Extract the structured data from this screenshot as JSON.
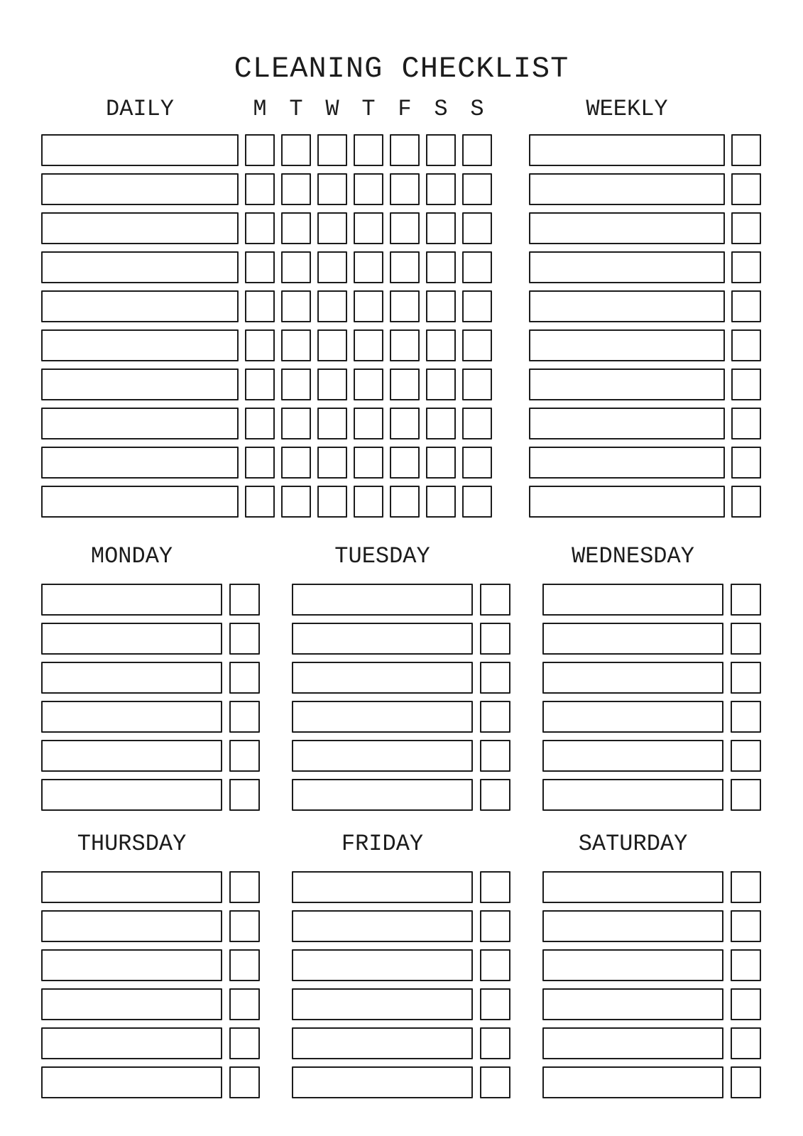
{
  "title": "CLEANING CHECKLIST",
  "colors": {
    "ink": "#1c1c1c",
    "paper": "#ffffff"
  },
  "daily": {
    "label": "DAILY",
    "day_letters": [
      "M",
      "T",
      "W",
      "T",
      "F",
      "S",
      "S"
    ],
    "row_count": 10,
    "checkboxes_per_row": 7
  },
  "weekly": {
    "label": "WEEKLY",
    "row_count": 10,
    "checkboxes_per_row": 1
  },
  "day_sections": [
    {
      "label": "MONDAY"
    },
    {
      "label": "TUESDAY"
    },
    {
      "label": "WEDNESDAY"
    },
    {
      "label": "THURSDAY"
    },
    {
      "label": "FRIDAY"
    },
    {
      "label": "SATURDAY"
    }
  ],
  "day_section_row_count": 6,
  "day_section_checkboxes_per_row": 1
}
